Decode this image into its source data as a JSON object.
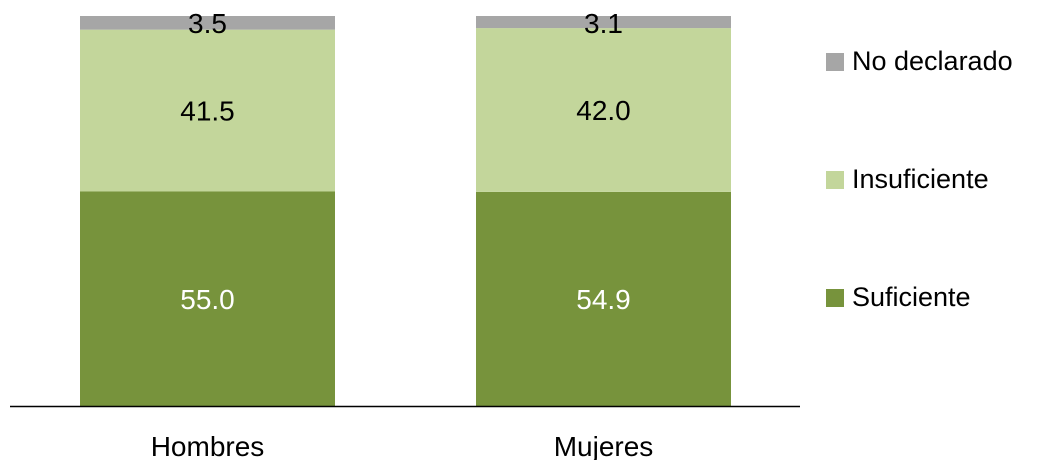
{
  "chart_data": {
    "type": "bar",
    "stacked": true,
    "categories": [
      "Hombres",
      "Mujeres"
    ],
    "series": [
      {
        "name": "Suficiente",
        "values": [
          55.0,
          54.9
        ],
        "labels": [
          "55.0",
          "54.9"
        ],
        "color": "#77933c",
        "label_color": "#ffffff"
      },
      {
        "name": "Insuficiente",
        "values": [
          41.5,
          42.0
        ],
        "labels": [
          "41.5",
          "42.0"
        ],
        "color": "#c3d69b",
        "label_color": "#000000"
      },
      {
        "name": "No declarado",
        "values": [
          3.5,
          3.1
        ],
        "labels": [
          "3.5",
          "3.1"
        ],
        "color": "#a6a6a6",
        "label_color": "#000000"
      }
    ],
    "ylim": [
      0,
      100
    ],
    "grid": false,
    "legend_position": "right",
    "legend_order": [
      "No declarado",
      "Insuficiente",
      "Suficiente"
    ]
  }
}
